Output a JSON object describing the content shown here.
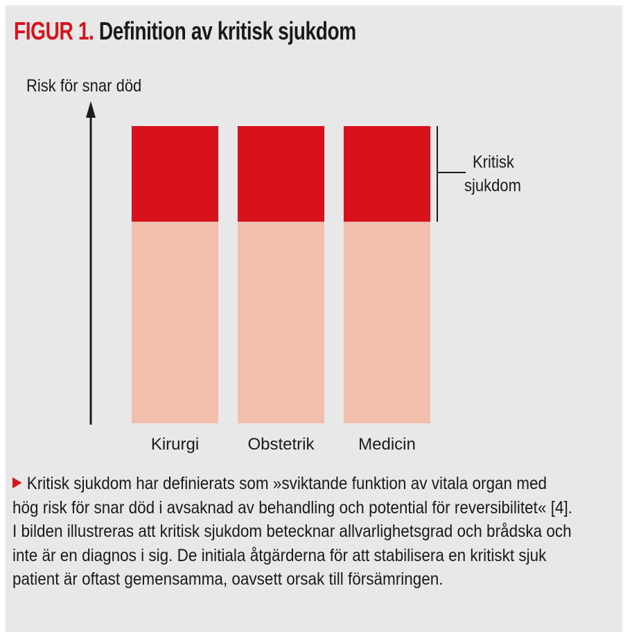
{
  "figure": {
    "number": "FIGUR 1.",
    "title": "Definition av kritisk sjukdom",
    "y_axis_label": "Risk för snar död",
    "bracket_label_line1": "Kritisk",
    "bracket_label_line2": "sjukdom",
    "categories": [
      "Kirurgi",
      "Obstetrik",
      "Medicin"
    ],
    "colors": {
      "critical": "#d7121a",
      "non_critical": "#f2bfac",
      "accent": "#d7121a"
    }
  },
  "caption": "Kritisk sjukdom har definierats som »sviktande funktion av vitala organ med hög risk för snar död i avsaknad av behandling och potential för reversibilitet« [4]. I bilden illustreras att kritisk sjukdom betecknar allvarlighetsgrad och brådska och inte är en diagnos i sig. De initiala åtgärderna för att stabilisera en kritiskt sjuk patient är oftast gemensamma, oavsett orsak till försämringen."
}
